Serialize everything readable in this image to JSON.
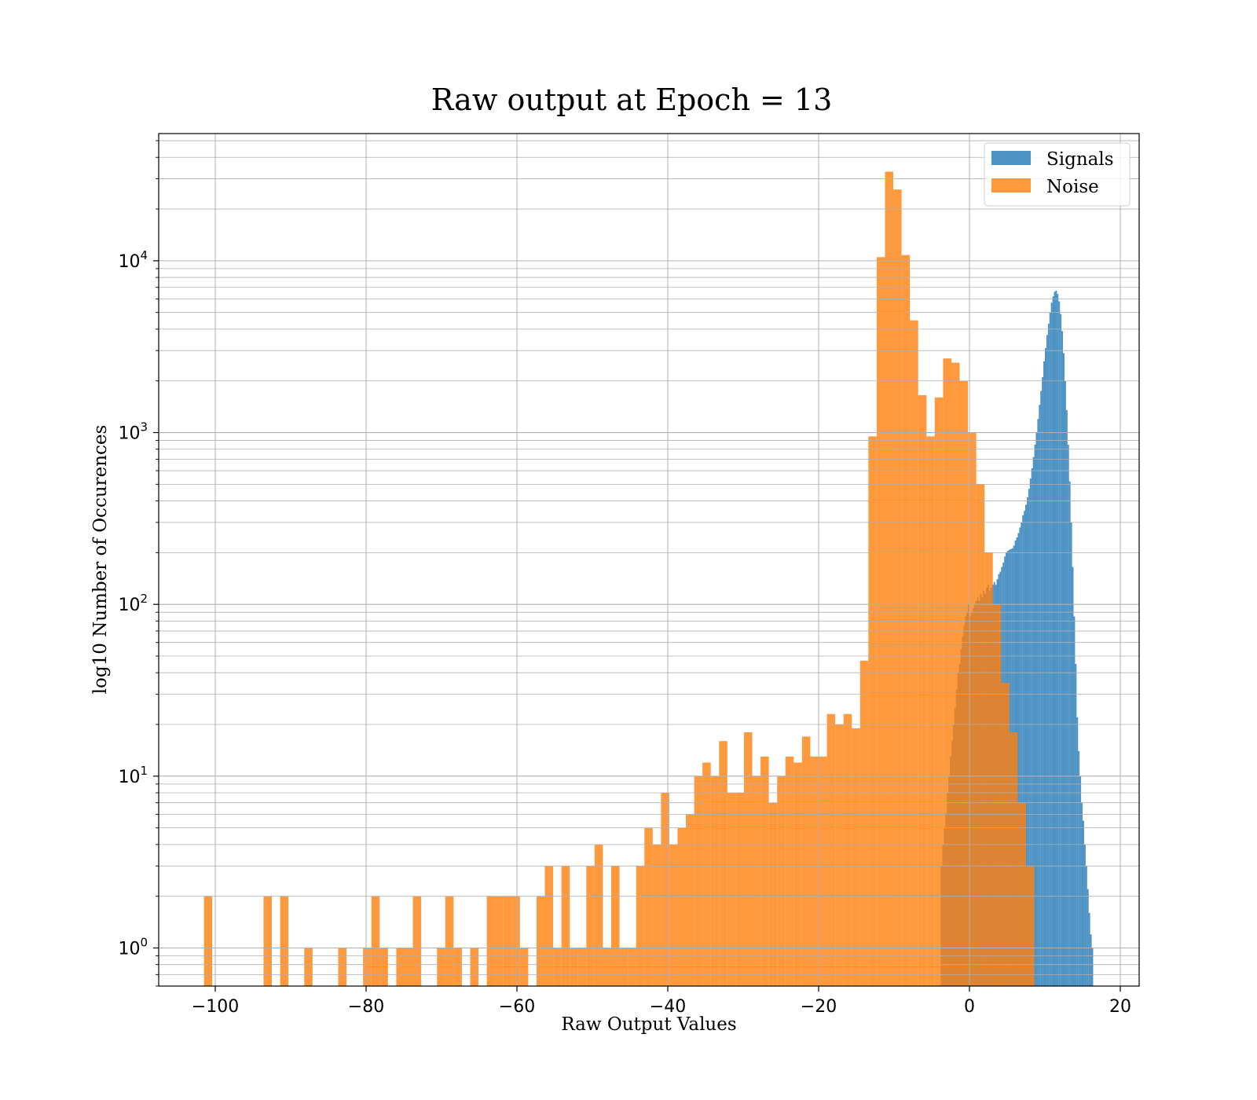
{
  "chart_data": {
    "type": "bar",
    "title": "Raw output at Epoch = 13",
    "xlabel": "Raw Output Values",
    "ylabel": "log10 Number of Occurences",
    "xlim": [
      -107.5,
      22.5
    ],
    "ylim": [
      0.6,
      55000
    ],
    "yscale": "log",
    "grid": true,
    "legend_position": "top-right",
    "x_ticks": [
      {
        "value": -100,
        "label": "−100"
      },
      {
        "value": -80,
        "label": "−80"
      },
      {
        "value": -60,
        "label": "−60"
      },
      {
        "value": -40,
        "label": "−40"
      },
      {
        "value": -20,
        "label": "−20"
      },
      {
        "value": 0,
        "label": "0"
      },
      {
        "value": 20,
        "label": "20"
      }
    ],
    "y_ticks": [
      {
        "value": 1,
        "base": "10",
        "exp": "0"
      },
      {
        "value": 10,
        "base": "10",
        "exp": "1"
      },
      {
        "value": 100,
        "base": "10",
        "exp": "2"
      },
      {
        "value": 1000,
        "base": "10",
        "exp": "3"
      },
      {
        "value": 10000,
        "base": "10",
        "exp": "4"
      }
    ],
    "series": [
      {
        "name": "Signals",
        "color": "#1f77b4",
        "bins": [
          [
            -3.8,
            -3.6,
            3
          ],
          [
            -3.6,
            -3.4,
            4
          ],
          [
            -3.4,
            -3.2,
            5
          ],
          [
            -3.2,
            -3.0,
            6
          ],
          [
            -3.0,
            -2.8,
            8
          ],
          [
            -2.8,
            -2.6,
            10
          ],
          [
            -2.6,
            -2.4,
            13
          ],
          [
            -2.4,
            -2.2,
            16
          ],
          [
            -2.2,
            -2.0,
            20
          ],
          [
            -2.0,
            -1.8,
            25
          ],
          [
            -1.8,
            -1.6,
            32
          ],
          [
            -1.6,
            -1.4,
            40
          ],
          [
            -1.4,
            -1.2,
            45
          ],
          [
            -1.2,
            -1.0,
            55
          ],
          [
            -1.0,
            -0.8,
            65
          ],
          [
            -0.8,
            -0.6,
            75
          ],
          [
            -0.6,
            -0.4,
            85
          ],
          [
            -0.4,
            -0.2,
            90
          ],
          [
            -0.2,
            0.0,
            100
          ],
          [
            0.0,
            0.2,
            85
          ],
          [
            0.2,
            0.4,
            90
          ],
          [
            0.4,
            0.6,
            95
          ],
          [
            0.6,
            0.8,
            100
          ],
          [
            0.8,
            1.0,
            105
          ],
          [
            1.0,
            1.2,
            110
          ],
          [
            1.2,
            1.4,
            105
          ],
          [
            1.4,
            1.6,
            115
          ],
          [
            1.6,
            1.8,
            110
          ],
          [
            1.8,
            2.0,
            120
          ],
          [
            2.0,
            2.2,
            115
          ],
          [
            2.2,
            2.4,
            125
          ],
          [
            2.4,
            2.6,
            130
          ],
          [
            2.6,
            2.8,
            120
          ],
          [
            2.8,
            3.0,
            125
          ],
          [
            3.0,
            3.2,
            130
          ],
          [
            3.2,
            3.4,
            135
          ],
          [
            3.4,
            3.6,
            130
          ],
          [
            3.6,
            3.8,
            140
          ],
          [
            3.8,
            4.0,
            150
          ],
          [
            4.0,
            4.2,
            155
          ],
          [
            4.2,
            4.4,
            165
          ],
          [
            4.4,
            4.6,
            175
          ],
          [
            4.6,
            4.8,
            190
          ],
          [
            4.8,
            5.0,
            200
          ],
          [
            5.0,
            5.2,
            205
          ],
          [
            5.2,
            5.4,
            208
          ],
          [
            5.4,
            5.6,
            210
          ],
          [
            5.6,
            5.8,
            212
          ],
          [
            5.8,
            6.0,
            220
          ],
          [
            6.0,
            6.2,
            235
          ],
          [
            6.2,
            6.4,
            245
          ],
          [
            6.4,
            6.6,
            260
          ],
          [
            6.6,
            6.8,
            280
          ],
          [
            6.8,
            7.0,
            300
          ],
          [
            7.0,
            7.2,
            330
          ],
          [
            7.2,
            7.4,
            350
          ],
          [
            7.4,
            7.6,
            380
          ],
          [
            7.6,
            7.8,
            420
          ],
          [
            7.8,
            8.0,
            470
          ],
          [
            8.0,
            8.2,
            540
          ],
          [
            8.2,
            8.4,
            620
          ],
          [
            8.4,
            8.6,
            720
          ],
          [
            8.6,
            8.8,
            850
          ],
          [
            8.8,
            9.0,
            1000
          ],
          [
            9.0,
            9.2,
            1200
          ],
          [
            9.2,
            9.4,
            1450
          ],
          [
            9.4,
            9.6,
            1750
          ],
          [
            9.6,
            9.8,
            2100
          ],
          [
            9.8,
            10.0,
            2600
          ],
          [
            10.0,
            10.2,
            3100
          ],
          [
            10.2,
            10.4,
            3700
          ],
          [
            10.4,
            10.6,
            4300
          ],
          [
            10.6,
            10.8,
            5000
          ],
          [
            10.8,
            11.0,
            5700
          ],
          [
            11.0,
            11.2,
            6200
          ],
          [
            11.2,
            11.4,
            6600
          ],
          [
            11.4,
            11.6,
            6700
          ],
          [
            11.6,
            11.8,
            6400
          ],
          [
            11.8,
            12.0,
            5800
          ],
          [
            12.0,
            12.2,
            4900
          ],
          [
            12.2,
            12.4,
            3900
          ],
          [
            12.4,
            12.6,
            2900
          ],
          [
            12.6,
            12.8,
            2000
          ],
          [
            12.8,
            13.0,
            1350
          ],
          [
            13.0,
            13.2,
            850
          ],
          [
            13.2,
            13.4,
            520
          ],
          [
            13.4,
            13.6,
            300
          ],
          [
            13.6,
            13.8,
            165
          ],
          [
            13.8,
            14.0,
            85
          ],
          [
            14.0,
            14.2,
            45
          ],
          [
            14.2,
            14.4,
            22
          ],
          [
            14.4,
            14.6,
            14
          ],
          [
            14.6,
            14.8,
            10
          ],
          [
            14.8,
            15.0,
            7
          ],
          [
            15.0,
            15.2,
            5.5
          ],
          [
            15.2,
            15.4,
            4
          ],
          [
            15.4,
            15.6,
            3
          ],
          [
            15.6,
            15.8,
            2.2
          ],
          [
            15.8,
            16.0,
            1.6
          ],
          [
            16.0,
            16.2,
            1.2
          ],
          [
            16.2,
            16.4,
            1
          ]
        ]
      },
      {
        "name": "Noise",
        "color": "#ff7f0e",
        "bins": [
          [
            -101.5,
            -100.4,
            2
          ],
          [
            -93.6,
            -92.5,
            2
          ],
          [
            -91.4,
            -90.3,
            2
          ],
          [
            -88.2,
            -87.1,
            1
          ],
          [
            -83.7,
            -82.6,
            1
          ],
          [
            -80.4,
            -79.3,
            1
          ],
          [
            -79.3,
            -78.2,
            2
          ],
          [
            -78.2,
            -77.1,
            1
          ],
          [
            -76.0,
            -74.9,
            1
          ],
          [
            -74.9,
            -73.8,
            1
          ],
          [
            -73.8,
            -72.7,
            2
          ],
          [
            -70.6,
            -69.5,
            1
          ],
          [
            -69.5,
            -68.4,
            2
          ],
          [
            -68.4,
            -67.3,
            1
          ],
          [
            -66.2,
            -65.1,
            1
          ],
          [
            -64.0,
            -62.9,
            2
          ],
          [
            -62.9,
            -61.8,
            2
          ],
          [
            -61.8,
            -60.7,
            2
          ],
          [
            -60.7,
            -59.6,
            2
          ],
          [
            -59.6,
            -58.5,
            1
          ],
          [
            -57.4,
            -56.3,
            2
          ],
          [
            -56.3,
            -55.2,
            3
          ],
          [
            -55.2,
            -54.1,
            1
          ],
          [
            -54.1,
            -53.0,
            3
          ],
          [
            -53.0,
            -51.9,
            1
          ],
          [
            -51.9,
            -50.8,
            1
          ],
          [
            -50.8,
            -49.7,
            3
          ],
          [
            -49.7,
            -48.6,
            4
          ],
          [
            -48.6,
            -47.5,
            1
          ],
          [
            -47.5,
            -46.4,
            3
          ],
          [
            -46.4,
            -45.3,
            1
          ],
          [
            -45.3,
            -44.2,
            1
          ],
          [
            -44.2,
            -43.1,
            3
          ],
          [
            -43.1,
            -42.0,
            5
          ],
          [
            -42.0,
            -40.9,
            4
          ],
          [
            -40.9,
            -39.8,
            8
          ],
          [
            -39.8,
            -38.7,
            4
          ],
          [
            -38.7,
            -37.6,
            5
          ],
          [
            -37.6,
            -36.5,
            6
          ],
          [
            -36.5,
            -35.4,
            10
          ],
          [
            -35.4,
            -34.3,
            12
          ],
          [
            -34.3,
            -33.2,
            10
          ],
          [
            -33.2,
            -32.1,
            16
          ],
          [
            -32.1,
            -31.0,
            8
          ],
          [
            -31.0,
            -29.9,
            8
          ],
          [
            -29.9,
            -28.8,
            18
          ],
          [
            -28.8,
            -27.7,
            10
          ],
          [
            -27.7,
            -26.6,
            13
          ],
          [
            -26.6,
            -25.5,
            7
          ],
          [
            -25.5,
            -24.4,
            10
          ],
          [
            -24.4,
            -23.3,
            13
          ],
          [
            -23.3,
            -22.2,
            12
          ],
          [
            -22.2,
            -21.1,
            17
          ],
          [
            -21.1,
            -20.0,
            13
          ],
          [
            -20.0,
            -18.9,
            13
          ],
          [
            -18.9,
            -17.8,
            23
          ],
          [
            -17.8,
            -16.7,
            20
          ],
          [
            -16.7,
            -15.6,
            23
          ],
          [
            -15.6,
            -14.5,
            19
          ],
          [
            -14.5,
            -13.4,
            47
          ],
          [
            -13.4,
            -12.3,
            950
          ],
          [
            -12.3,
            -11.2,
            10500
          ],
          [
            -11.2,
            -10.1,
            33000
          ],
          [
            -10.1,
            -9.0,
            26000
          ],
          [
            -9.0,
            -7.9,
            10800
          ],
          [
            -7.9,
            -6.8,
            4500
          ],
          [
            -6.8,
            -5.7,
            1650
          ],
          [
            -5.7,
            -4.6,
            950
          ],
          [
            -4.6,
            -3.5,
            1600
          ],
          [
            -3.5,
            -2.4,
            2700
          ],
          [
            -2.4,
            -1.3,
            2550
          ],
          [
            -1.3,
            -0.2,
            2000
          ],
          [
            -0.2,
            0.9,
            1000
          ],
          [
            0.9,
            2.0,
            500
          ],
          [
            2.0,
            3.1,
            200
          ],
          [
            3.1,
            4.2,
            100
          ],
          [
            4.2,
            5.3,
            35
          ],
          [
            5.3,
            6.4,
            18
          ],
          [
            6.4,
            7.5,
            7
          ],
          [
            7.5,
            8.6,
            3
          ]
        ]
      }
    ]
  }
}
